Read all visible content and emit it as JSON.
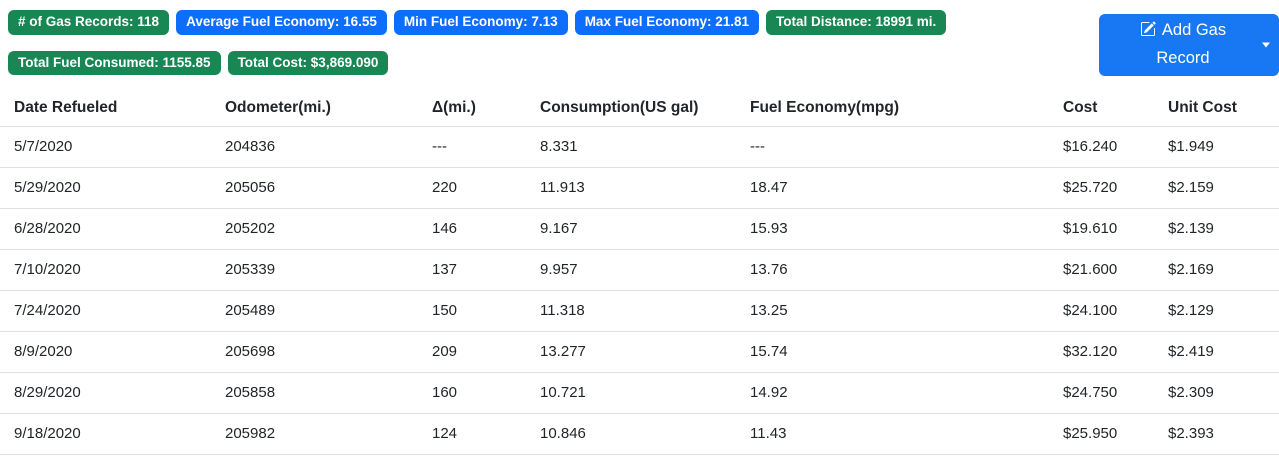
{
  "colors": {
    "green": "#198754",
    "blue": "#0d6efd",
    "button_blue": "#1877f2"
  },
  "badges": [
    {
      "label": "# of Gas Records: 118",
      "color": "green"
    },
    {
      "label": "Average Fuel Economy: 16.55",
      "color": "blue"
    },
    {
      "label": "Min Fuel Economy: 7.13",
      "color": "blue"
    },
    {
      "label": "Max Fuel Economy: 21.81",
      "color": "blue"
    },
    {
      "label": "Total Distance: 18991 mi.",
      "color": "green"
    },
    {
      "label": "Total Fuel Consumed: 1155.85",
      "color": "green"
    },
    {
      "label": "Total Cost: $3,869.090",
      "color": "green"
    }
  ],
  "add_button": {
    "label": "Add Gas Record",
    "icon": "pencil-square-icon"
  },
  "table": {
    "headers": [
      "Date Refueled",
      "Odometer(mi.)",
      "Δ(mi.)",
      "Consumption(US gal)",
      "Fuel Economy(mpg)",
      "Cost",
      "Unit Cost"
    ],
    "rows": [
      [
        "5/7/2020",
        "204836",
        "---",
        "8.331",
        "---",
        "$16.240",
        "$1.949"
      ],
      [
        "5/29/2020",
        "205056",
        "220",
        "11.913",
        "18.47",
        "$25.720",
        "$2.159"
      ],
      [
        "6/28/2020",
        "205202",
        "146",
        "9.167",
        "15.93",
        "$19.610",
        "$2.139"
      ],
      [
        "7/10/2020",
        "205339",
        "137",
        "9.957",
        "13.76",
        "$21.600",
        "$2.169"
      ],
      [
        "7/24/2020",
        "205489",
        "150",
        "11.318",
        "13.25",
        "$24.100",
        "$2.129"
      ],
      [
        "8/9/2020",
        "205698",
        "209",
        "13.277",
        "15.74",
        "$32.120",
        "$2.419"
      ],
      [
        "8/29/2020",
        "205858",
        "160",
        "10.721",
        "14.92",
        "$24.750",
        "$2.309"
      ],
      [
        "9/18/2020",
        "205982",
        "124",
        "10.846",
        "11.43",
        "$25.950",
        "$2.393"
      ]
    ]
  }
}
